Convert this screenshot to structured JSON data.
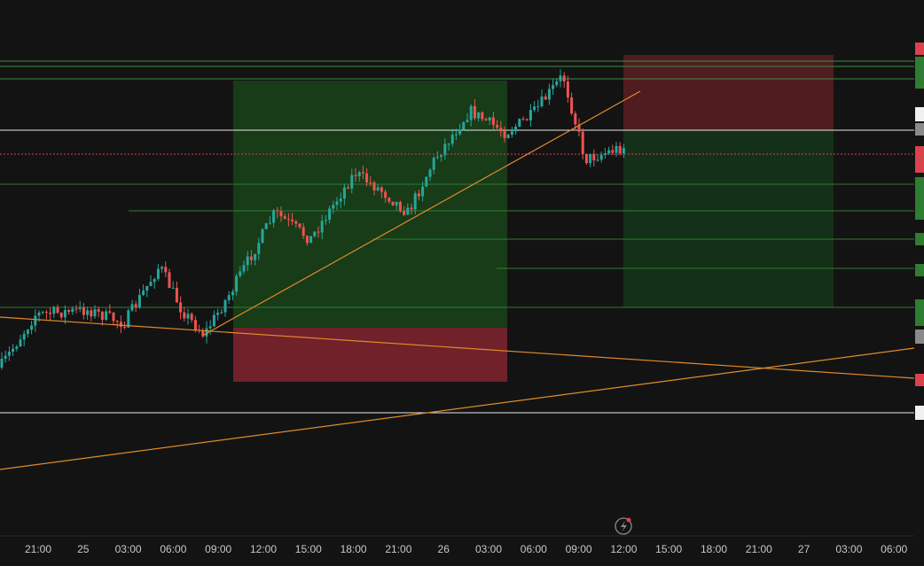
{
  "time_axis": {
    "labels": [
      "21:00",
      "25",
      "03:00",
      "06:00",
      "09:00",
      "12:00",
      "15:00",
      "18:00",
      "21:00",
      "26",
      "03:00",
      "06:00",
      "09:00",
      "12:00",
      "15:00",
      "18:00",
      "21:00",
      "27",
      "03:00",
      "06:00"
    ]
  }
}
